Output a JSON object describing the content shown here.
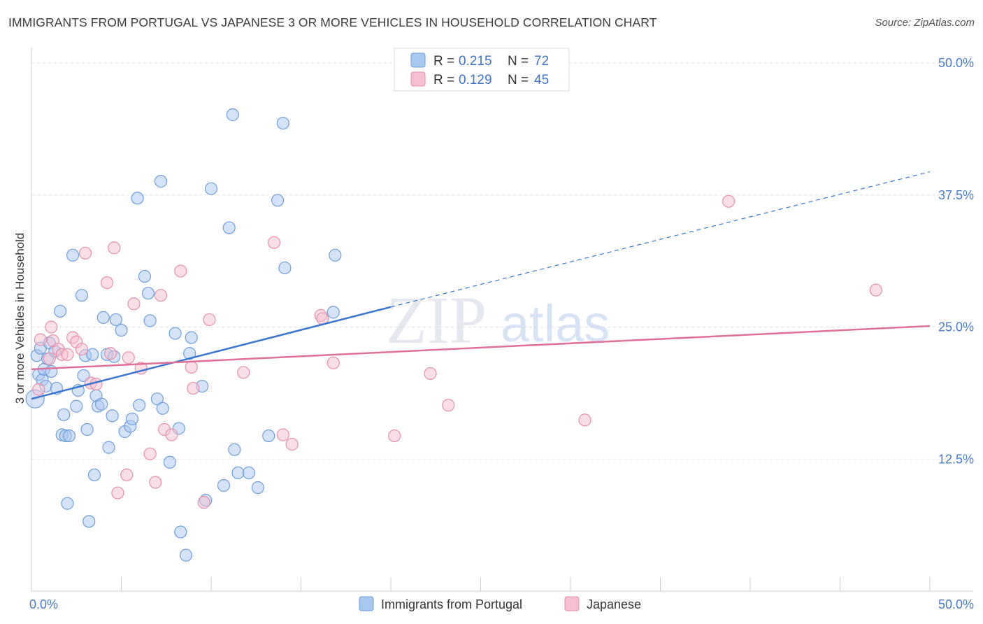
{
  "title": "IMMIGRANTS FROM PORTUGAL VS JAPANESE 3 OR MORE VEHICLES IN HOUSEHOLD CORRELATION CHART",
  "source": "Source: ZipAtlas.com",
  "watermark": {
    "zip": "ZIP",
    "atlas": "atlas"
  },
  "colors": {
    "blue_fill": "#a9c8ef",
    "blue_stroke": "#6f9fdc",
    "blue_line": "#3a75cf",
    "pink_fill": "#f6bfd0",
    "pink_stroke": "#e78fae",
    "pink_line": "#e0709a",
    "tick_text": "#4a7cc9",
    "grid": "#dfe3ea"
  },
  "legend": {
    "rows": [
      {
        "r_label": "R =",
        "r_value": "0.215",
        "n_label": "N =",
        "n_value": "72",
        "series": "blue"
      },
      {
        "r_label": "R =",
        "r_value": "0.129",
        "n_label": "N =",
        "n_value": "45",
        "series": "pink"
      }
    ]
  },
  "chart_data": {
    "type": "scatter",
    "xlabel": "",
    "ylabel": "3 or more Vehicles in Household",
    "xlim": [
      0,
      50
    ],
    "ylim": [
      0,
      50
    ],
    "x_tick_labels": [
      "0.0%",
      "50.0%"
    ],
    "y_ticks": [
      12.5,
      25.0,
      37.5,
      50.0
    ],
    "y_tick_labels": [
      "12.5%",
      "25.0%",
      "37.5%",
      "50.0%"
    ],
    "grid": true,
    "legend_position": "top-center",
    "series": [
      {
        "name": "Immigrants from Portugal",
        "color": "blue",
        "trend": {
          "x_start": 0,
          "y_start": 18.2,
          "x_solid_end": 20,
          "y_solid_end": 26.9,
          "x_end": 50,
          "y_end": 39.7
        },
        "points": [
          [
            0.2,
            18.2
          ],
          [
            0.3,
            22.3
          ],
          [
            0.4,
            20.5
          ],
          [
            0.5,
            23.0
          ],
          [
            0.6,
            20.0
          ],
          [
            0.7,
            21.0
          ],
          [
            0.8,
            19.4
          ],
          [
            0.9,
            22.0
          ],
          [
            1.0,
            23.5
          ],
          [
            1.1,
            20.8
          ],
          [
            1.3,
            22.7
          ],
          [
            1.4,
            19.2
          ],
          [
            1.6,
            26.5
          ],
          [
            1.7,
            14.8
          ],
          [
            1.8,
            16.7
          ],
          [
            1.9,
            14.7
          ],
          [
            2.0,
            8.3
          ],
          [
            2.1,
            14.7
          ],
          [
            2.3,
            31.8
          ],
          [
            2.5,
            17.5
          ],
          [
            2.6,
            19.0
          ],
          [
            2.8,
            28.0
          ],
          [
            2.9,
            20.4
          ],
          [
            3.0,
            22.3
          ],
          [
            3.1,
            15.3
          ],
          [
            3.2,
            6.6
          ],
          [
            3.4,
            22.4
          ],
          [
            3.5,
            11.0
          ],
          [
            3.6,
            18.5
          ],
          [
            3.7,
            17.5
          ],
          [
            3.9,
            17.7
          ],
          [
            4.0,
            25.9
          ],
          [
            4.2,
            22.4
          ],
          [
            4.3,
            13.6
          ],
          [
            4.5,
            16.6
          ],
          [
            4.6,
            22.2
          ],
          [
            4.7,
            25.7
          ],
          [
            5.0,
            24.7
          ],
          [
            5.2,
            15.1
          ],
          [
            5.5,
            15.6
          ],
          [
            5.6,
            16.3
          ],
          [
            5.9,
            37.2
          ],
          [
            6.0,
            17.6
          ],
          [
            6.3,
            29.8
          ],
          [
            6.5,
            28.2
          ],
          [
            6.6,
            25.6
          ],
          [
            7.0,
            18.2
          ],
          [
            7.2,
            38.8
          ],
          [
            7.3,
            17.3
          ],
          [
            7.7,
            12.2
          ],
          [
            8.0,
            24.4
          ],
          [
            8.2,
            15.4
          ],
          [
            8.3,
            5.6
          ],
          [
            8.6,
            3.4
          ],
          [
            8.8,
            22.5
          ],
          [
            8.9,
            24.0
          ],
          [
            9.5,
            19.4
          ],
          [
            9.7,
            8.6
          ],
          [
            10.0,
            38.1
          ],
          [
            10.7,
            10.0
          ],
          [
            11.0,
            34.4
          ],
          [
            11.2,
            45.1
          ],
          [
            11.3,
            13.4
          ],
          [
            11.5,
            11.2
          ],
          [
            12.1,
            11.2
          ],
          [
            12.6,
            9.8
          ],
          [
            13.2,
            14.7
          ],
          [
            13.7,
            37.0
          ],
          [
            14.0,
            44.3
          ],
          [
            14.1,
            30.6
          ],
          [
            16.8,
            26.4
          ],
          [
            16.9,
            31.8
          ]
        ]
      },
      {
        "name": "Japanese",
        "color": "pink",
        "trend": {
          "x_start": 0,
          "y_start": 21.0,
          "x_end": 50,
          "y_end": 25.1
        },
        "points": [
          [
            0.4,
            19.1
          ],
          [
            0.5,
            23.8
          ],
          [
            1.0,
            22.0
          ],
          [
            1.1,
            25.0
          ],
          [
            1.2,
            23.7
          ],
          [
            1.5,
            22.9
          ],
          [
            1.7,
            22.4
          ],
          [
            2.0,
            22.4
          ],
          [
            2.3,
            24.0
          ],
          [
            2.5,
            23.6
          ],
          [
            2.8,
            22.9
          ],
          [
            3.0,
            32.0
          ],
          [
            3.3,
            19.7
          ],
          [
            3.6,
            19.6
          ],
          [
            4.2,
            29.2
          ],
          [
            4.4,
            22.5
          ],
          [
            4.6,
            32.5
          ],
          [
            4.8,
            9.3
          ],
          [
            5.3,
            11.0
          ],
          [
            5.4,
            22.1
          ],
          [
            5.7,
            27.2
          ],
          [
            6.1,
            21.1
          ],
          [
            6.6,
            13.0
          ],
          [
            6.9,
            10.3
          ],
          [
            7.2,
            28.0
          ],
          [
            7.4,
            15.3
          ],
          [
            7.8,
            14.8
          ],
          [
            8.3,
            30.3
          ],
          [
            8.9,
            21.2
          ],
          [
            9.0,
            19.2
          ],
          [
            9.6,
            8.4
          ],
          [
            9.9,
            25.7
          ],
          [
            11.8,
            20.7
          ],
          [
            13.5,
            33.0
          ],
          [
            14.0,
            14.8
          ],
          [
            14.5,
            13.9
          ],
          [
            16.1,
            26.1
          ],
          [
            16.2,
            25.8
          ],
          [
            16.8,
            21.6
          ],
          [
            20.2,
            14.7
          ],
          [
            22.2,
            20.6
          ],
          [
            23.2,
            17.6
          ],
          [
            30.8,
            16.2
          ],
          [
            38.8,
            36.9
          ],
          [
            47.0,
            28.5
          ]
        ]
      }
    ]
  }
}
